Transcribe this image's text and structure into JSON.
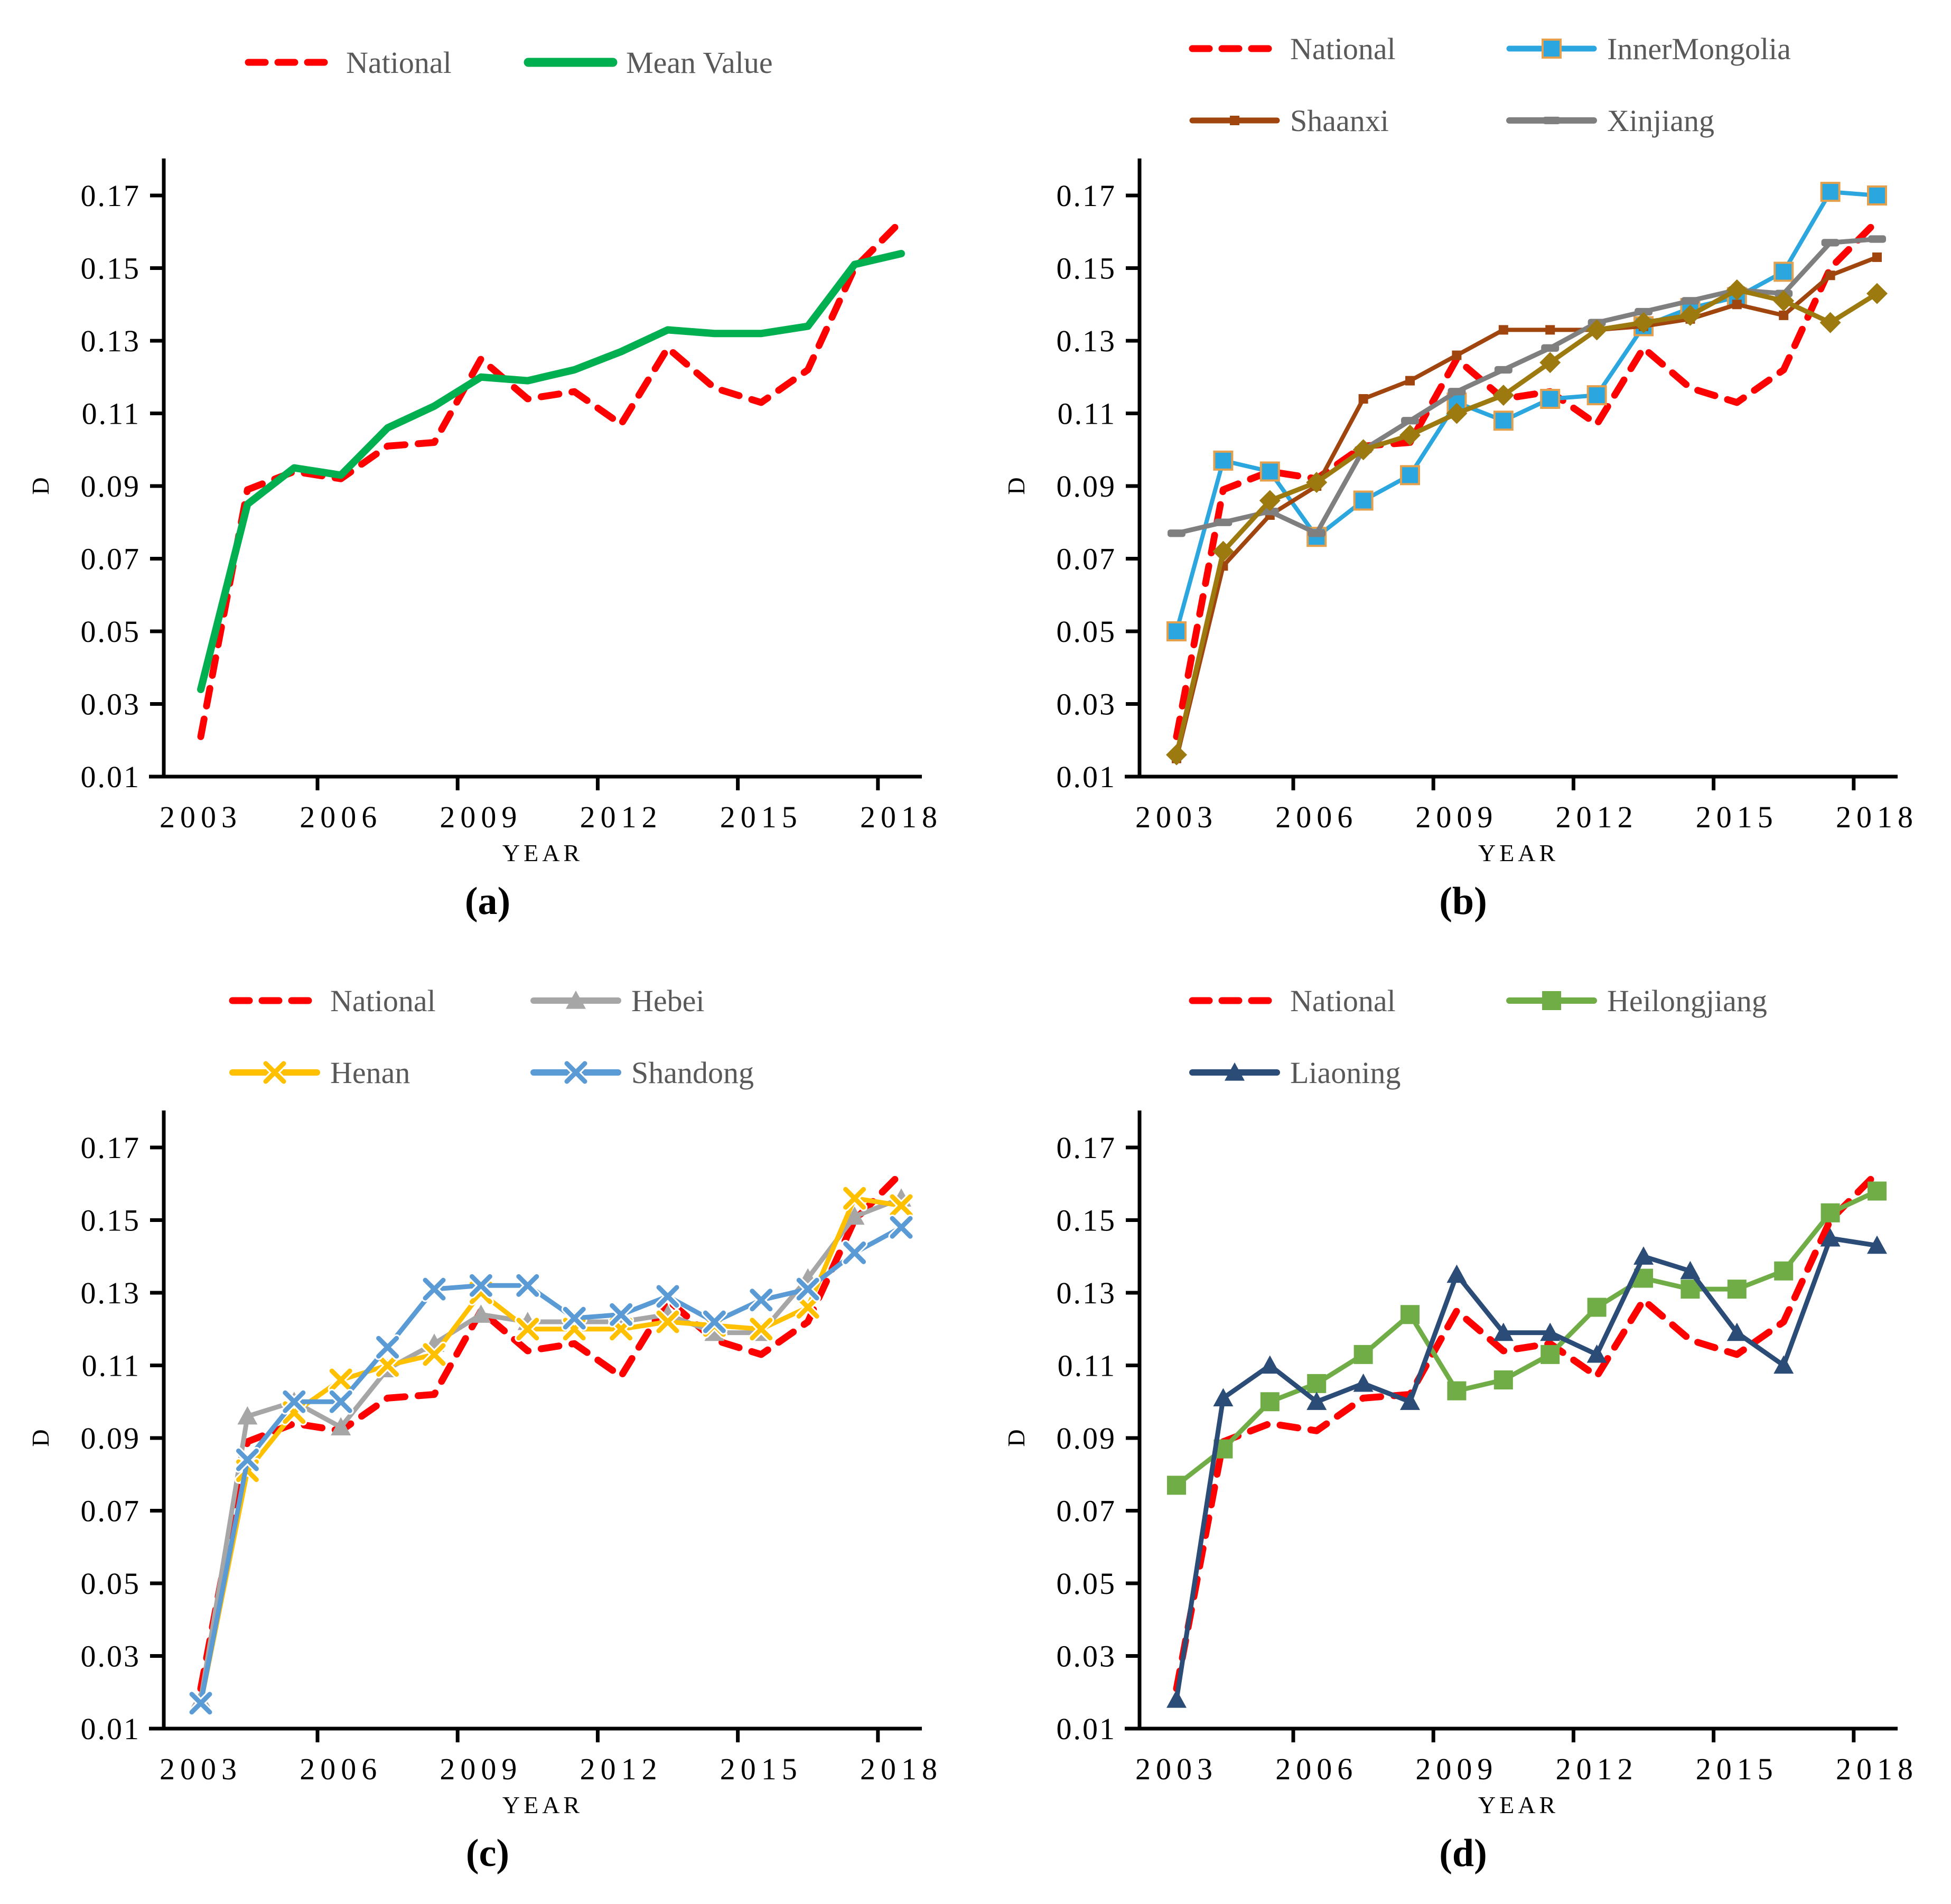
{
  "figure": {
    "background": "#ffffff",
    "text_color": "#000000",
    "legend_text_color": "#595959",
    "axis_color": "#000000"
  },
  "chart_data": [
    {
      "id": "a",
      "caption": "(a)",
      "type": "line",
      "xlabel": "YEAR",
      "ylabel": "D",
      "x": [
        2003,
        2004,
        2005,
        2006,
        2007,
        2008,
        2009,
        2010,
        2011,
        2012,
        2013,
        2014,
        2015,
        2016,
        2017,
        2018
      ],
      "xticks": [
        "2003",
        "2006",
        "2009",
        "2012",
        "2015",
        "2018"
      ],
      "yticks": [
        "0.01",
        "0.03",
        "0.05",
        "0.07",
        "0.09",
        "0.11",
        "0.13",
        "0.15",
        "0.17"
      ],
      "ylim": [
        0.01,
        0.17
      ],
      "grid": false,
      "legend_rows": [
        [
          "National",
          "Mean Value"
        ]
      ],
      "legend_position": "top-center",
      "series": [
        {
          "name": "National",
          "color": "#FF0000",
          "dashed": true,
          "width": 13,
          "marker": "none",
          "in_legend": true,
          "values": [
            0.021,
            0.089,
            0.094,
            0.092,
            0.101,
            0.102,
            0.125,
            0.114,
            0.116,
            0.107,
            0.128,
            0.117,
            0.113,
            0.122,
            0.15,
            0.163
          ]
        },
        {
          "name": "Mean Value",
          "color": "#00B050",
          "dashed": false,
          "width": 14,
          "marker": "none",
          "in_legend": true,
          "values": [
            0.034,
            0.085,
            0.095,
            0.093,
            0.106,
            0.112,
            0.12,
            0.119,
            0.122,
            0.127,
            0.133,
            0.132,
            0.132,
            0.134,
            0.151,
            0.154
          ]
        }
      ]
    },
    {
      "id": "b",
      "caption": "(b)",
      "type": "line",
      "xlabel": "YEAR",
      "ylabel": "D",
      "x": [
        2003,
        2004,
        2005,
        2006,
        2007,
        2008,
        2009,
        2010,
        2011,
        2012,
        2013,
        2014,
        2015,
        2016,
        2017,
        2018
      ],
      "xticks": [
        "2003",
        "2006",
        "2009",
        "2012",
        "2015",
        "2018"
      ],
      "yticks": [
        "0.01",
        "0.03",
        "0.05",
        "0.07",
        "0.09",
        "0.11",
        "0.13",
        "0.15",
        "0.17"
      ],
      "ylim": [
        0.01,
        0.17
      ],
      "grid": false,
      "legend_rows": [
        [
          "National",
          "InnerMongolia"
        ],
        [
          "Shaanxi",
          "Xinjiang"
        ]
      ],
      "legend_position": "top",
      "series": [
        {
          "name": "National",
          "color": "#FF0000",
          "dashed": true,
          "width": 13,
          "marker": "none",
          "in_legend": true,
          "values": [
            0.021,
            0.089,
            0.094,
            0.092,
            0.101,
            0.102,
            0.125,
            0.114,
            0.116,
            0.107,
            0.128,
            0.117,
            0.113,
            0.122,
            0.15,
            0.163
          ]
        },
        {
          "name": "InnerMongolia",
          "color": "#2BA6DE",
          "dashed": false,
          "width": 8,
          "marker": "square",
          "marker_size": 34,
          "marker_stroke": "#E4A04C",
          "in_legend": true,
          "values": [
            0.05,
            0.097,
            0.094,
            0.076,
            0.086,
            0.093,
            0.113,
            0.108,
            0.114,
            0.115,
            0.134,
            0.139,
            0.142,
            0.149,
            0.171,
            0.17
          ]
        },
        {
          "name": "Shaanxi",
          "color": "#A0450E",
          "dashed": false,
          "width": 8,
          "marker": "square",
          "marker_size": 18,
          "in_legend": true,
          "values": [
            0.015,
            0.068,
            0.082,
            0.09,
            0.114,
            0.119,
            0.126,
            0.133,
            0.133,
            0.133,
            0.134,
            0.136,
            0.14,
            0.137,
            0.148,
            0.153
          ]
        },
        {
          "name": "Xinjiang",
          "color": "#7F7F7F",
          "dashed": false,
          "width": 9,
          "marker": "hbar",
          "marker_size": 34,
          "in_legend": true,
          "values": [
            0.077,
            0.08,
            0.083,
            0.077,
            0.1,
            0.108,
            0.116,
            0.122,
            0.128,
            0.135,
            0.138,
            0.141,
            0.144,
            0.143,
            0.157,
            0.158
          ]
        },
        {
          "name": "(unlabeled)",
          "color": "#9C7A0F",
          "dashed": false,
          "width": 9,
          "marker": "diamond",
          "marker_size": 40,
          "in_legend": false,
          "values": [
            0.016,
            0.072,
            0.086,
            0.091,
            0.1,
            0.104,
            0.11,
            0.115,
            0.124,
            0.133,
            0.135,
            0.137,
            0.144,
            0.141,
            0.135,
            0.143
          ]
        }
      ]
    },
    {
      "id": "c",
      "caption": "(c)",
      "type": "line",
      "xlabel": "YEAR",
      "ylabel": "D",
      "x": [
        2003,
        2004,
        2005,
        2006,
        2007,
        2008,
        2009,
        2010,
        2011,
        2012,
        2013,
        2014,
        2015,
        2016,
        2017,
        2018
      ],
      "xticks": [
        "2003",
        "2006",
        "2009",
        "2012",
        "2015",
        "2018"
      ],
      "yticks": [
        "0.01",
        "0.03",
        "0.05",
        "0.07",
        "0.09",
        "0.11",
        "0.13",
        "0.15",
        "0.17"
      ],
      "ylim": [
        0.01,
        0.17
      ],
      "grid": false,
      "legend_rows": [
        [
          "National",
          "Hebei"
        ],
        [
          "Henan",
          "Shandong"
        ]
      ],
      "legend_position": "top",
      "series": [
        {
          "name": "National",
          "color": "#FF0000",
          "dashed": true,
          "width": 13,
          "marker": "none",
          "in_legend": true,
          "values": [
            0.021,
            0.089,
            0.094,
            0.092,
            0.101,
            0.102,
            0.125,
            0.114,
            0.116,
            0.107,
            0.128,
            0.117,
            0.113,
            0.122,
            0.15,
            0.163
          ]
        },
        {
          "name": "Hebei",
          "color": "#A6A6A6",
          "dashed": false,
          "width": 9,
          "marker": "triangle",
          "marker_size": 38,
          "in_legend": true,
          "values": [
            0.018,
            0.096,
            0.1,
            0.093,
            0.109,
            0.116,
            0.124,
            0.122,
            0.122,
            0.122,
            0.124,
            0.119,
            0.119,
            0.134,
            0.151,
            0.156
          ]
        },
        {
          "name": "Henan",
          "color": "#FFC000",
          "dashed": false,
          "width": 9,
          "marker": "xcross",
          "marker_size": 34,
          "in_legend": true,
          "values": [
            0.017,
            0.081,
            0.097,
            0.106,
            0.11,
            0.113,
            0.13,
            0.12,
            0.12,
            0.12,
            0.122,
            0.121,
            0.12,
            0.126,
            0.156,
            0.154
          ]
        },
        {
          "name": "Shandong",
          "color": "#5B9BD5",
          "dashed": false,
          "width": 9,
          "marker": "xcross",
          "marker_size": 34,
          "in_legend": true,
          "values": [
            0.017,
            0.084,
            0.1,
            0.1,
            0.115,
            0.131,
            0.132,
            0.132,
            0.123,
            0.124,
            0.129,
            0.122,
            0.128,
            0.131,
            0.141,
            0.148
          ]
        }
      ]
    },
    {
      "id": "d",
      "caption": "(d)",
      "type": "line",
      "xlabel": "YEAR",
      "ylabel": "D",
      "x": [
        2003,
        2004,
        2005,
        2006,
        2007,
        2008,
        2009,
        2010,
        2011,
        2012,
        2013,
        2014,
        2015,
        2016,
        2017,
        2018
      ],
      "xticks": [
        "2003",
        "2006",
        "2009",
        "2012",
        "2015",
        "2018"
      ],
      "yticks": [
        "0.01",
        "0.03",
        "0.05",
        "0.07",
        "0.09",
        "0.11",
        "0.13",
        "0.15",
        "0.17"
      ],
      "ylim": [
        0.01,
        0.17
      ],
      "grid": false,
      "legend_rows": [
        [
          "National",
          "Heilongjiang"
        ],
        [
          "Liaoning"
        ]
      ],
      "legend_position": "top",
      "series": [
        {
          "name": "National",
          "color": "#FF0000",
          "dashed": true,
          "width": 13,
          "marker": "none",
          "in_legend": true,
          "values": [
            0.021,
            0.089,
            0.094,
            0.092,
            0.101,
            0.102,
            0.125,
            0.114,
            0.116,
            0.107,
            0.128,
            0.117,
            0.113,
            0.122,
            0.15,
            0.163
          ]
        },
        {
          "name": "Heilongjiang",
          "color": "#70AD47",
          "dashed": false,
          "width": 9,
          "marker": "square",
          "marker_size": 36,
          "in_legend": true,
          "values": [
            0.077,
            0.087,
            0.1,
            0.105,
            0.113,
            0.124,
            0.103,
            0.106,
            0.113,
            0.126,
            0.134,
            0.131,
            0.131,
            0.136,
            0.152,
            0.158
          ]
        },
        {
          "name": "Liaoning",
          "color": "#2C4C78",
          "dashed": false,
          "width": 9,
          "marker": "triangle",
          "marker_size": 38,
          "in_legend": true,
          "values": [
            0.018,
            0.101,
            0.11,
            0.1,
            0.105,
            0.1,
            0.135,
            0.119,
            0.119,
            0.113,
            0.14,
            0.136,
            0.119,
            0.11,
            0.145,
            0.143
          ]
        }
      ]
    }
  ]
}
